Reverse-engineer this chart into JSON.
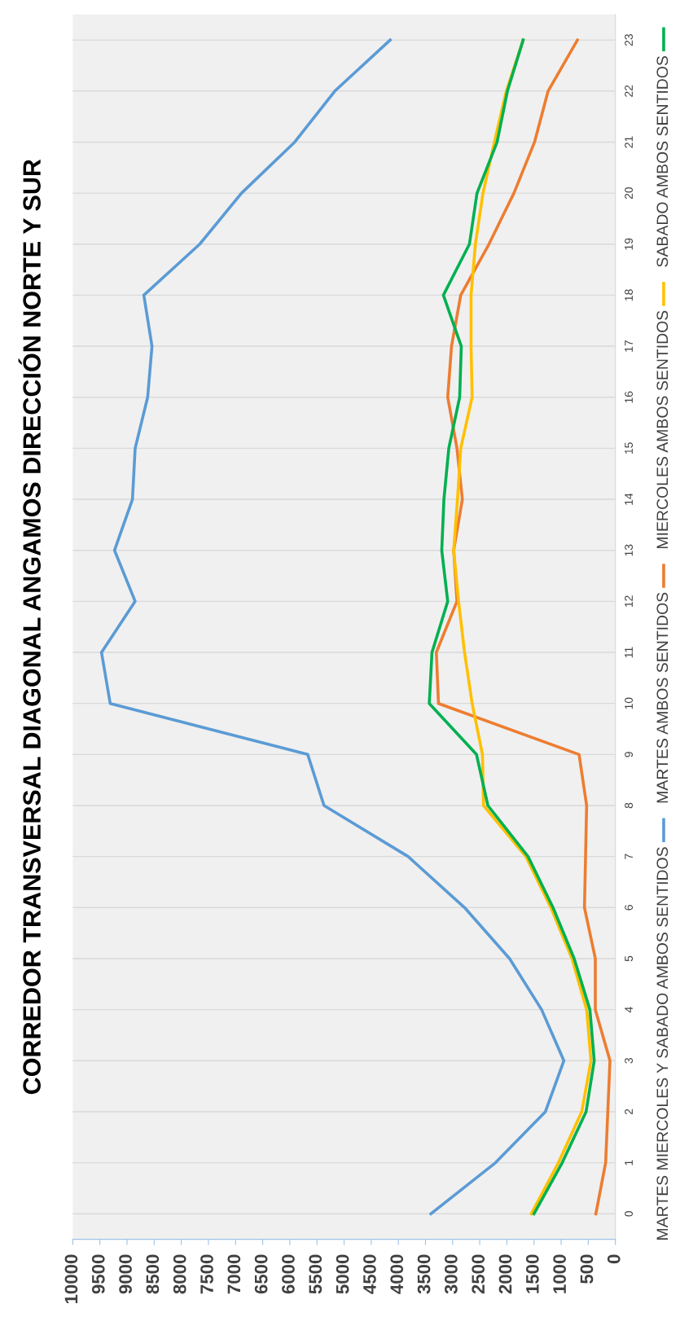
{
  "chart_data": {
    "type": "line",
    "title": "CORREDOR TRANSVERSAL DIAGONAL ANGAMOS DIRECCIÓN NORTE Y SUR",
    "categories": [
      "23",
      "22",
      "21",
      "20",
      "19",
      "18",
      "17",
      "16",
      "15",
      "14",
      "13",
      "12",
      "11",
      "10",
      "9",
      "8",
      "7",
      "6",
      "5",
      "4",
      "3",
      "2",
      "1",
      "0"
    ],
    "series": [
      {
        "name": "MARTES MIERCOLES Y SABADO AMBOS SENTIDOS",
        "color": "#5b9bd5",
        "values": [
          4150,
          5170,
          5910,
          6890,
          7660,
          8690,
          8540,
          8620,
          8850,
          8900,
          9230,
          8850,
          9470,
          9310,
          5670,
          5370,
          3820,
          2780,
          1950,
          1360,
          950,
          1290,
          2210,
          3400
        ]
      },
      {
        "name": "MARTES AMBOS SENTIDOS",
        "color": "#ed7d31",
        "values": [
          700,
          1240,
          1490,
          1870,
          2330,
          2850,
          3020,
          3090,
          2920,
          2820,
          2980,
          2920,
          3300,
          3260,
          670,
          530,
          550,
          570,
          370,
          370,
          100,
          140,
          180,
          360
        ]
      },
      {
        "name": "MIERCOLES AMBOS SENTIDOS",
        "color": "#ffc000",
        "values": [
          1700,
          2010,
          2230,
          2440,
          2580,
          2660,
          2660,
          2640,
          2850,
          2910,
          2980,
          2890,
          2780,
          2640,
          2450,
          2430,
          1650,
          1190,
          800,
          530,
          450,
          620,
          1050,
          1550
        ]
      },
      {
        "name": "SABADO AMBOS SENTIDOS",
        "color": "#00b050",
        "values": [
          1700,
          1990,
          2180,
          2550,
          2690,
          3170,
          2840,
          2870,
          3070,
          3160,
          3200,
          3090,
          3380,
          3430,
          2560,
          2350,
          1610,
          1150,
          760,
          470,
          390,
          540,
          980,
          1500
        ]
      }
    ],
    "orientation": "horizontal",
    "xlim": [
      10000,
      0
    ],
    "xticks": [
      0,
      500,
      1000,
      1500,
      2000,
      2500,
      3000,
      3500,
      4000,
      4500,
      5000,
      5500,
      6000,
      6500,
      7000,
      7500,
      8000,
      8500,
      9000,
      9500,
      10000
    ],
    "grid": "y",
    "legend": "bottom",
    "marker": "none",
    "line_style": "solid"
  }
}
